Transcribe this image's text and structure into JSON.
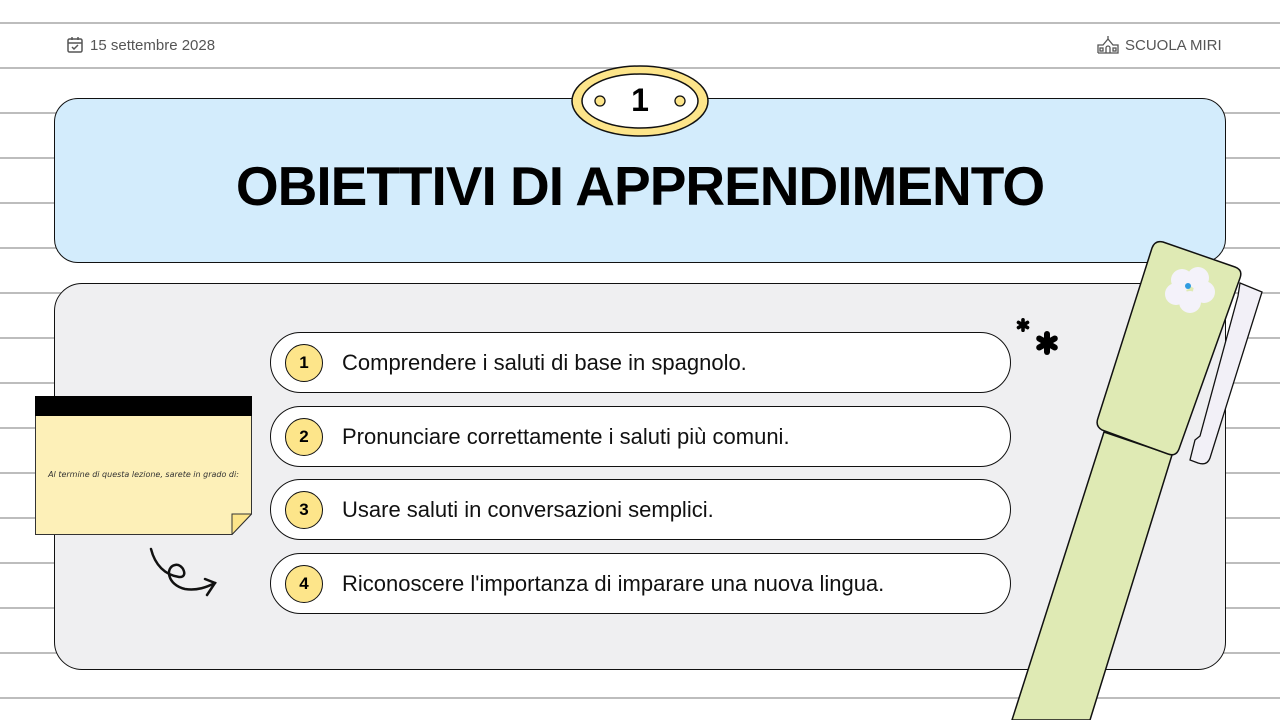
{
  "header": {
    "date": "15 settembre 2028",
    "school": "SCUOLA MIRI",
    "date_icon": "calendar-check-icon",
    "school_icon": "school-building-icon"
  },
  "slide": {
    "number": "1",
    "title": "OBIETTIVI DI APPRENDIMENTO"
  },
  "note": {
    "text": "Al termine di questa lezione, sarete in grado di:"
  },
  "objectives": [
    {
      "num": "1",
      "text": "Comprendere i saluti di base in spagnolo."
    },
    {
      "num": "2",
      "text": "Pronunciare correttamente i saluti più comuni."
    },
    {
      "num": "3",
      "text": "Usare saluti in conversazioni semplici."
    },
    {
      "num": "4",
      "text": "Riconoscere l'importanza di imparare una nuova lingua."
    }
  ],
  "colors": {
    "title_bg": "#d3ecfc",
    "panel_bg": "#efeff1",
    "accent_yellow": "#fde58a",
    "pen_green": "#dfeab4",
    "note_yellow": "#fdf0b8"
  }
}
